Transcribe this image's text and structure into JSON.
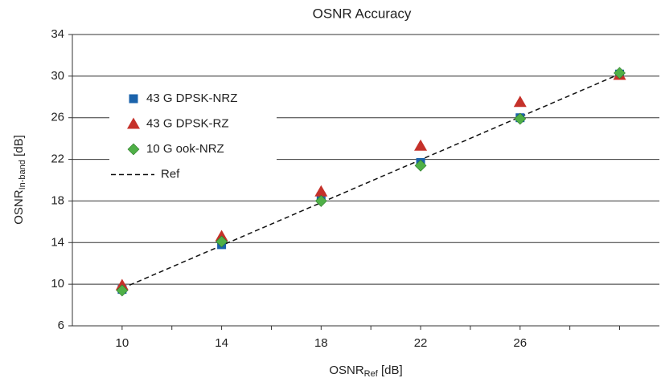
{
  "chart_data": {
    "type": "scatter",
    "title": "OSNR Accuracy",
    "xlabel": {
      "main": "OSNR",
      "sub": "Ref",
      "unit": " [dB]"
    },
    "ylabel": {
      "main": "OSNR",
      "sub": "In-band",
      "unit": " [dB]"
    },
    "xlim": [
      8,
      31.6
    ],
    "ylim": [
      6,
      34
    ],
    "xticks": [
      10,
      14,
      18,
      22,
      26
    ],
    "xminorticks": [
      12,
      16,
      20,
      24,
      28,
      30
    ],
    "yticks": [
      6,
      10,
      14,
      18,
      22,
      26,
      30,
      34
    ],
    "grid": true,
    "legend": "upper left",
    "series": [
      {
        "name": "43 G DPSK-NRZ",
        "marker": "square",
        "color": "#1b63ab",
        "x": [
          10,
          14,
          18,
          22,
          26,
          30
        ],
        "values": [
          9.5,
          13.8,
          18.4,
          21.7,
          26.0,
          30.2
        ]
      },
      {
        "name": "43 G DPSK-RZ",
        "marker": "triangle",
        "color": "#c5312a",
        "x": [
          10,
          14,
          18,
          22,
          26,
          30
        ],
        "values": [
          9.9,
          14.6,
          18.9,
          23.3,
          27.5,
          30.1
        ]
      },
      {
        "name": "10 G ook-NRZ",
        "marker": "diamond",
        "color": "#4fb047",
        "x": [
          10,
          14,
          18,
          22,
          26,
          30
        ],
        "values": [
          9.4,
          14.1,
          18.0,
          21.4,
          25.9,
          30.3
        ]
      },
      {
        "name": "Ref",
        "marker": "dashed",
        "color": "#111111",
        "x": [
          10,
          30
        ],
        "values": [
          9.6,
          30.2
        ]
      }
    ]
  }
}
